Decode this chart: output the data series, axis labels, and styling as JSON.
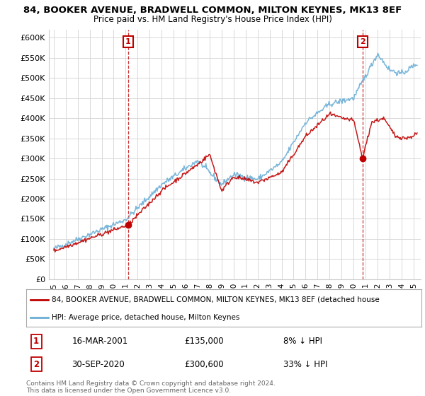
{
  "title": "84, BOOKER AVENUE, BRADWELL COMMON, MILTON KEYNES, MK13 8EF",
  "subtitle": "Price paid vs. HM Land Registry's House Price Index (HPI)",
  "legend_line1": "84, BOOKER AVENUE, BRADWELL COMMON, MILTON KEYNES, MK13 8EF (detached house",
  "legend_line2": "HPI: Average price, detached house, Milton Keynes",
  "annotation1_label": "1",
  "annotation1_date": "16-MAR-2001",
  "annotation1_price": "£135,000",
  "annotation1_hpi": "8% ↓ HPI",
  "annotation2_label": "2",
  "annotation2_date": "30-SEP-2020",
  "annotation2_price": "£300,600",
  "annotation2_hpi": "33% ↓ HPI",
  "footer": "Contains HM Land Registry data © Crown copyright and database right 2024.\nThis data is licensed under the Open Government Licence v3.0.",
  "ylim": [
    0,
    620000
  ],
  "ytick_vals": [
    0,
    50000,
    100000,
    150000,
    200000,
    250000,
    300000,
    350000,
    400000,
    450000,
    500000,
    550000,
    600000
  ],
  "ytick_labels": [
    "£0",
    "£50K",
    "£100K",
    "£150K",
    "£200K",
    "£250K",
    "£300K",
    "£350K",
    "£400K",
    "£450K",
    "£500K",
    "£550K",
    "£600K"
  ],
  "hpi_color": "#6baed6",
  "price_color": "#c00000",
  "background_color": "#ffffff",
  "grid_color": "#d8d8d8",
  "t1": 2001.21,
  "t2": 2020.75,
  "p1": 135000,
  "p2": 300600
}
